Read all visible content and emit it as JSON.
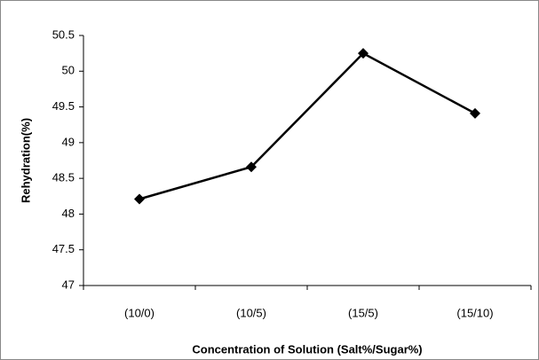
{
  "chart_data": {
    "type": "line",
    "categories": [
      "(10/0)",
      "(10/5)",
      "(15/5)",
      "(15/10)"
    ],
    "series": [
      {
        "color": "#000000",
        "values": [
          48.21,
          48.66,
          50.25,
          49.41
        ]
      }
    ],
    "ylim": [
      47,
      50.5
    ],
    "yticks": [
      47,
      47.5,
      48,
      48.5,
      49,
      49.5,
      50,
      50.5
    ],
    "ylabel": "Rehydration(%)",
    "xlabel": "Concentration of Solution (Salt%/Sugar%)",
    "grid": false
  }
}
